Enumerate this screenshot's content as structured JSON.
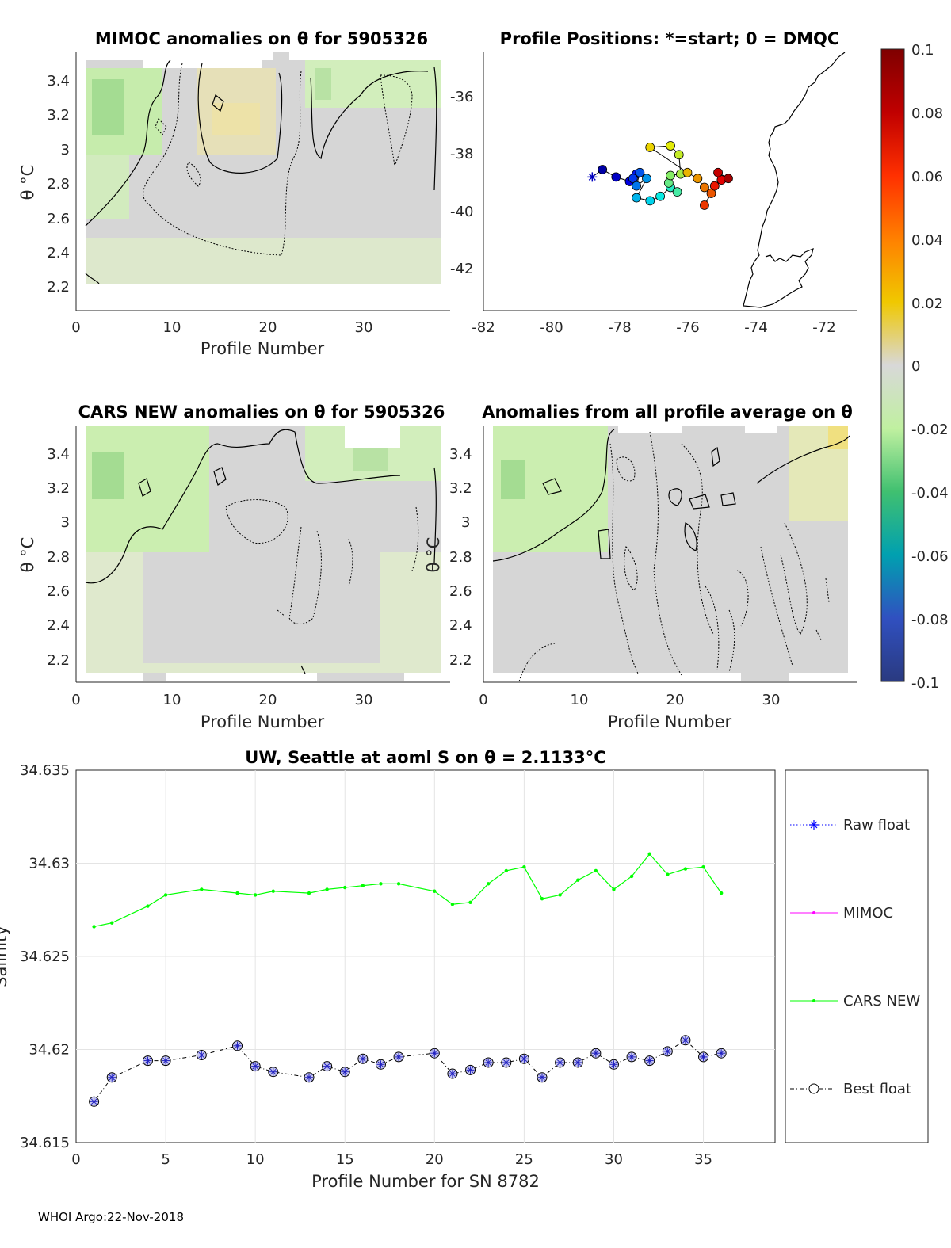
{
  "footer": "WHOI Argo:22-Nov-2018",
  "colorbar": {
    "ticks": [
      "0.1",
      "0.08",
      "0.06",
      "0.04",
      "0.02",
      "0",
      "-0.02",
      "-0.04",
      "-0.06",
      "-0.08",
      "-0.1"
    ],
    "colors": [
      "#7f0000",
      "#c00000",
      "#ff3000",
      "#ff8000",
      "#f0c800",
      "#d8d8d8",
      "#c0f0a0",
      "#40c070",
      "#00a0b0",
      "#3050c0",
      "#2a3a80"
    ]
  },
  "chart_data": [
    {
      "type": "heatmap",
      "title": "MIMOC anomalies on θ  for 5905326",
      "xlabel": "Profile Number",
      "ylabel": "θ °C",
      "xticks": [
        "0",
        "10",
        "20",
        "30"
      ],
      "yticks": [
        "2.2",
        "2.4",
        "2.6",
        "2.8",
        "3",
        "3.2",
        "3.4"
      ],
      "xlim": [
        0,
        39
      ],
      "ylim": [
        2.08,
        3.56
      ]
    },
    {
      "type": "scatter",
      "title": "Profile Positions: *=start; 0 = DMQC",
      "xticks": [
        "-82",
        "-80",
        "-78",
        "-76",
        "-74",
        "-72"
      ],
      "yticks": [
        "-36",
        "-38",
        "-40",
        "-42"
      ],
      "xlim": [
        -82,
        -71
      ],
      "ylim": [
        -43.5,
        -34.8
      ],
      "track": [
        [
          -78.8,
          -39.0
        ],
        [
          -78.5,
          -38.75
        ],
        [
          -78.1,
          -39.0
        ],
        [
          -77.7,
          -39.15
        ],
        [
          -77.5,
          -38.9
        ],
        [
          -77.6,
          -39.05
        ],
        [
          -77.4,
          -38.85
        ],
        [
          -77.5,
          -39.3
        ],
        [
          -77.2,
          -39.05
        ],
        [
          -77.5,
          -39.7
        ],
        [
          -77.1,
          -39.8
        ],
        [
          -76.8,
          -39.65
        ],
        [
          -76.5,
          -39.35
        ],
        [
          -76.3,
          -39.5
        ],
        [
          -76.55,
          -39.2
        ],
        [
          -76.5,
          -38.95
        ],
        [
          -76.2,
          -38.9
        ],
        [
          -76.25,
          -38.25
        ],
        [
          -76.5,
          -37.95
        ],
        [
          -77.1,
          -38.0
        ],
        [
          -76.0,
          -38.85
        ],
        [
          -75.7,
          -39.05
        ],
        [
          -75.5,
          -39.35
        ],
        [
          -75.3,
          -39.55
        ],
        [
          -75.5,
          -39.95
        ],
        [
          -75.2,
          -39.3
        ],
        [
          -75.0,
          -39.1
        ],
        [
          -75.1,
          -38.85
        ],
        [
          -74.8,
          -39.05
        ]
      ]
    },
    {
      "type": "heatmap",
      "title": "CARS NEW anomalies on θ for 5905326",
      "xlabel": "Profile Number",
      "ylabel": "θ °C",
      "xticks": [
        "0",
        "10",
        "20",
        "30"
      ],
      "yticks": [
        "2.2",
        "2.4",
        "2.6",
        "2.8",
        "3",
        "3.2",
        "3.4"
      ],
      "xlim": [
        0,
        39
      ],
      "ylim": [
        2.08,
        3.56
      ]
    },
    {
      "type": "heatmap",
      "title": "Anomalies from all profile average on θ",
      "xlabel": "Profile Number",
      "ylabel": "θ °C",
      "xticks": [
        "0",
        "10",
        "20",
        "30"
      ],
      "yticks": [
        "2.2",
        "2.4",
        "2.6",
        "2.8",
        "3",
        "3.2",
        "3.4"
      ],
      "xlim": [
        0,
        39
      ],
      "ylim": [
        2.08,
        3.56
      ]
    },
    {
      "type": "line",
      "title": "UW, Seattle at aoml S on θ = 2.1133°C",
      "xlabel": "Profile Number for SN 8782",
      "ylabel": "Salinity",
      "xlim": [
        0,
        39
      ],
      "ylim": [
        34.615,
        34.635
      ],
      "xticks": [
        "0",
        "5",
        "10",
        "15",
        "20",
        "25",
        "30",
        "35"
      ],
      "yticks": [
        "34.615",
        "34.62",
        "34.625",
        "34.63",
        "34.635"
      ],
      "legend": [
        "Raw float",
        "MIMOC",
        "CARS NEW",
        "Best float"
      ],
      "series": [
        {
          "name": "CARS NEW",
          "x": [
            1,
            2,
            4,
            5,
            7,
            9,
            10,
            11,
            13,
            14,
            15,
            16,
            17,
            18,
            20,
            21,
            22,
            23,
            24,
            25,
            26,
            27,
            28,
            29,
            30,
            31,
            32,
            33,
            34,
            35,
            36
          ],
          "values": [
            34.6266,
            34.6268,
            34.6277,
            34.6283,
            34.6286,
            34.6284,
            34.6283,
            34.6285,
            34.6284,
            34.6286,
            34.6287,
            34.6288,
            34.6289,
            34.6289,
            34.6285,
            34.6278,
            34.6279,
            34.6289,
            34.6296,
            34.6298,
            34.6281,
            34.6283,
            34.6291,
            34.6296,
            34.6286,
            34.6293,
            34.6305,
            34.6294,
            34.6297,
            34.6298,
            34.6284
          ]
        },
        {
          "name": "Best float",
          "x": [
            1,
            2,
            4,
            5,
            7,
            9,
            10,
            11,
            13,
            14,
            15,
            16,
            17,
            18,
            20,
            21,
            22,
            23,
            24,
            25,
            26,
            27,
            28,
            29,
            30,
            31,
            32,
            33,
            34,
            35,
            36
          ],
          "values": [
            34.6172,
            34.6185,
            34.6194,
            34.6194,
            34.6197,
            34.6202,
            34.6191,
            34.6188,
            34.6185,
            34.6191,
            34.6188,
            34.6195,
            34.6192,
            34.6196,
            34.6198,
            34.6187,
            34.6189,
            34.6193,
            34.6193,
            34.6195,
            34.6185,
            34.6193,
            34.6193,
            34.6198,
            34.6192,
            34.6196,
            34.6194,
            34.6199,
            34.6205,
            34.6196,
            34.6198
          ]
        }
      ]
    }
  ]
}
